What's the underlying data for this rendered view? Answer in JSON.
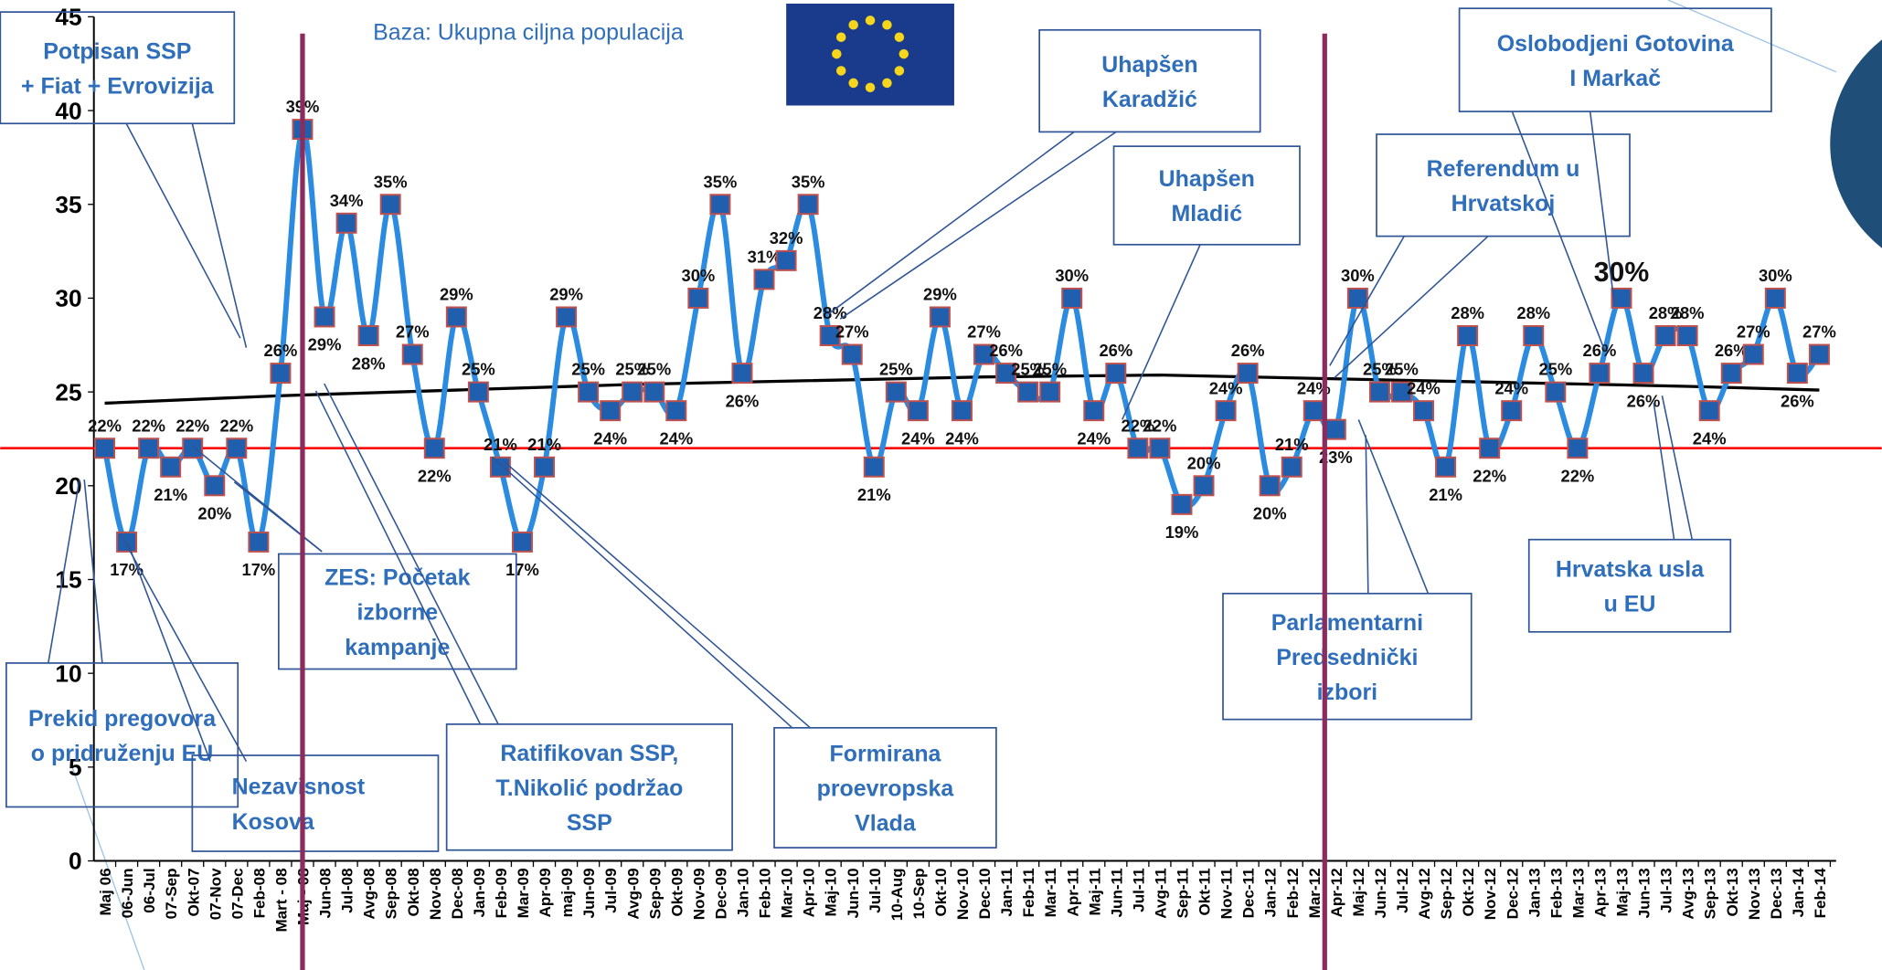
{
  "chart_data": {
    "type": "line",
    "subtitle": "Baza: Ukupna ciljna populacija",
    "categories": [
      "Maj 06",
      "06-Jun",
      "06-Jul",
      "07-Sep",
      "Okt-07",
      "07-Nov",
      "07-Dec",
      "Feb-08",
      "Mart - 08",
      "Maj - 08",
      "Jun-08",
      "Jul-08",
      "Avg-08",
      "Sep-08",
      "Okt-08",
      "Nov-08",
      "Dec-08",
      "Jan-09",
      "Feb-09",
      "Mar-09",
      "Apr-09",
      "maj-09",
      "Jun-09",
      "Jul-09",
      "Avg-09",
      "Sep-09",
      "Okt-09",
      "Nov-09",
      "Dec-09",
      "Jan-10",
      "Feb-10",
      "Mar-10",
      "Apr-10",
      "Maj-10",
      "Jun-10",
      "Jul-10",
      "10-Aug",
      "10-Sep",
      "Okt-10",
      "Nov-10",
      "Dec-10",
      "Jan-11",
      "Feb-11",
      "Mar-11",
      "Apr-11",
      "Maj-11",
      "Jun-11",
      "Jul-11",
      "Avg-11",
      "Sep-11",
      "Okt-11",
      "Nov-11",
      "Dec-11",
      "Jan-12",
      "Feb-12",
      "Mar-12",
      "Apr-12",
      "Maj-12",
      "Jun-12",
      "Jul-12",
      "Avg-12",
      "Sep-12",
      "Okt-12",
      "Nov-12",
      "Dec-12",
      "Jan-13",
      "Feb-13",
      "Mar-13",
      "Apr-13",
      "Maj-13",
      "Jun-13",
      "Jul-13",
      "Avg-13",
      "Sep-13",
      "Okt-13",
      "Nov-13",
      "Dec-13",
      "Jan-14",
      "Feb-14"
    ],
    "series": [
      {
        "color": "#2a8be0",
        "marker_color": "#1f5fae",
        "marker_edge": "#c0504d",
        "values": [
          22,
          17,
          22,
          21,
          22,
          20,
          22,
          17,
          26,
          39,
          29,
          34,
          28,
          35,
          27,
          22,
          29,
          25,
          21,
          17,
          21,
          29,
          25,
          24,
          25,
          25,
          24,
          30,
          35,
          26,
          31,
          32,
          35,
          28,
          27,
          21,
          25,
          24,
          29,
          24,
          27,
          26,
          25,
          25,
          30,
          24,
          26,
          22,
          22,
          19,
          20,
          24,
          26,
          20,
          21,
          24,
          23,
          30,
          25,
          25,
          24,
          21,
          28,
          22,
          24,
          28,
          25,
          22,
          26,
          30,
          26,
          28,
          28,
          24,
          26,
          27,
          30,
          26,
          27
        ],
        "value_labels": [
          "22%",
          "17%",
          "22%",
          "21%",
          "22%",
          "20%",
          "22%",
          "17%",
          "26%",
          "39%",
          "29%",
          "34%",
          "28%",
          "35%",
          "27%",
          "22%",
          "29%",
          "25%",
          "21%",
          "17%",
          "21%",
          "29%",
          "25%",
          "24%",
          "25%",
          "25%",
          "24%",
          "30%",
          "35%",
          "26%",
          "31%",
          "32%",
          "35%",
          "28%",
          "27%",
          "21%",
          "25%",
          "24%",
          "29%",
          "24%",
          "27%",
          "26%",
          "25%",
          "25%",
          "30%",
          "24%",
          "26%",
          "22%",
          "22%",
          "19%",
          "20%",
          "24%",
          "26%",
          "20%",
          "21%",
          "24%",
          "23%",
          "30%",
          "25%",
          "25%",
          "24%",
          "21%",
          "28%",
          "22%",
          "24%",
          "28%",
          "25%",
          "22%",
          "26%",
          "30%",
          "26%",
          "28%",
          "28%",
          "24%",
          "26%",
          "27%",
          "30%",
          "26%",
          "27%"
        ]
      }
    ],
    "trend": {
      "color": "#000000",
      "at": [
        0,
        8,
        16,
        24,
        32,
        40,
        48,
        56,
        64,
        72,
        78
      ],
      "values": [
        24.4,
        24.8,
        25.1,
        25.4,
        25.6,
        25.8,
        25.9,
        25.7,
        25.5,
        25.3,
        25.1
      ]
    },
    "reference_line": {
      "value": 22,
      "color": "#ff0000"
    },
    "vlines": [
      {
        "at": 9,
        "color": "#8b2c5e"
      },
      {
        "at": 55.5,
        "color": "#8b2c5e"
      }
    ],
    "ylim": [
      0,
      45
    ],
    "yticks": [
      0,
      5,
      10,
      15,
      20,
      25,
      30,
      35,
      40,
      45
    ],
    "annotations": [
      {
        "lines": [
          "Potpisan SSP",
          "+ Fiat + Evrovizija"
        ]
      },
      {
        "lines": [
          "Uhapšen",
          "Karadžić"
        ]
      },
      {
        "lines": [
          "Oslobodjeni Gotovina",
          "I Markač"
        ]
      },
      {
        "lines": [
          "Uhapšen",
          "Mladić"
        ]
      },
      {
        "lines": [
          "Referendum u",
          "Hrvatskoj"
        ]
      },
      {
        "lines": [
          "ZES: Početak",
          "izborne",
          "kampanje"
        ]
      },
      {
        "lines": [
          "Prekid pregovora",
          "o pridruženju  EU"
        ]
      },
      {
        "lines": [
          "Nezavisnost",
          "Kosova"
        ]
      },
      {
        "lines": [
          "Ratifikovan SSP,",
          "T.Nikolić podržao",
          "SSP"
        ]
      },
      {
        "lines": [
          "Formirana",
          "proevropska",
          "Vlada"
        ]
      },
      {
        "lines": [
          "Parlamentarni",
          "Predsednički",
          "izbori"
        ]
      },
      {
        "lines": [
          "Hrvatska usla",
          "u EU"
        ]
      }
    ]
  }
}
